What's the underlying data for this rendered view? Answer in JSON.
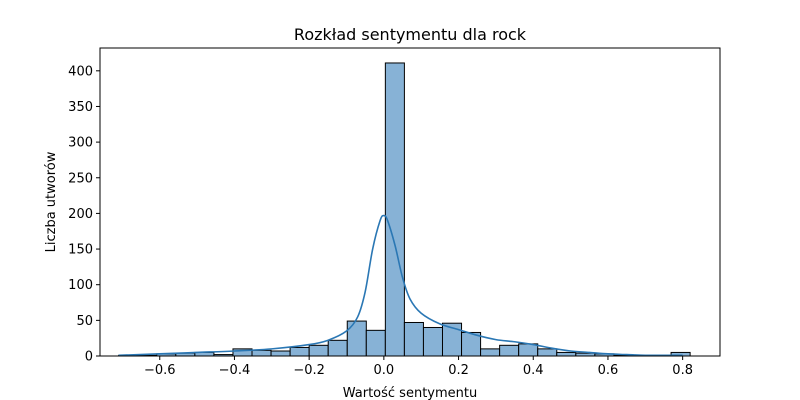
{
  "chart_data": {
    "type": "bar",
    "title": "Rozkład sentymentu dla rock",
    "xlabel": "Wartość sentymentu",
    "ylabel": "Liczba utworów",
    "xlim": [
      -0.76,
      0.9
    ],
    "ylim": [
      0,
      432
    ],
    "xticks": [
      -0.6,
      -0.4,
      -0.2,
      0.0,
      0.2,
      0.4,
      0.6,
      0.8
    ],
    "xtick_labels": [
      "−0.6",
      "−0.4",
      "−0.2",
      "0.0",
      "0.2",
      "0.4",
      "0.6",
      "0.8"
    ],
    "yticks": [
      0,
      50,
      100,
      150,
      200,
      250,
      300,
      350,
      400
    ],
    "ytick_labels": [
      "0",
      "50",
      "100",
      "150",
      "200",
      "250",
      "300",
      "350",
      "400"
    ],
    "bins": {
      "edges": [
        -0.71,
        -0.659,
        -0.608,
        -0.557,
        -0.506,
        -0.455,
        -0.404,
        -0.353,
        -0.302,
        -0.251,
        -0.2,
        -0.149,
        -0.098,
        -0.047,
        0.004,
        0.055,
        0.106,
        0.157,
        0.208,
        0.259,
        0.31,
        0.361,
        0.412,
        0.463,
        0.514,
        0.565,
        0.616,
        0.667,
        0.718,
        0.769,
        0.82
      ],
      "counts": [
        1,
        1,
        3,
        4,
        5,
        2,
        10,
        8,
        7,
        12,
        15,
        22,
        49,
        36,
        411,
        47,
        40,
        46,
        33,
        10,
        15,
        17,
        10,
        5,
        4,
        3,
        1,
        1,
        0,
        5
      ]
    },
    "kde": {
      "x": [
        -0.71,
        -0.6,
        -0.5,
        -0.4,
        -0.3,
        -0.2,
        -0.15,
        -0.1,
        -0.07,
        -0.05,
        -0.03,
        -0.01,
        0.0,
        0.01,
        0.03,
        0.05,
        0.07,
        0.1,
        0.15,
        0.2,
        0.25,
        0.3,
        0.35,
        0.4,
        0.45,
        0.5,
        0.55,
        0.6,
        0.65,
        0.7,
        0.75,
        0.8
      ],
      "y": [
        1,
        3,
        5,
        7,
        10,
        16,
        22,
        35,
        55,
        90,
        150,
        190,
        197,
        190,
        155,
        110,
        80,
        60,
        45,
        37,
        29,
        23,
        20,
        16,
        11,
        7,
        5,
        3,
        2,
        1,
        1,
        1
      ]
    },
    "colors": {
      "bar_fill": "#87b2d6",
      "line": "#2a77b4"
    },
    "grid": false,
    "legend": "none"
  }
}
